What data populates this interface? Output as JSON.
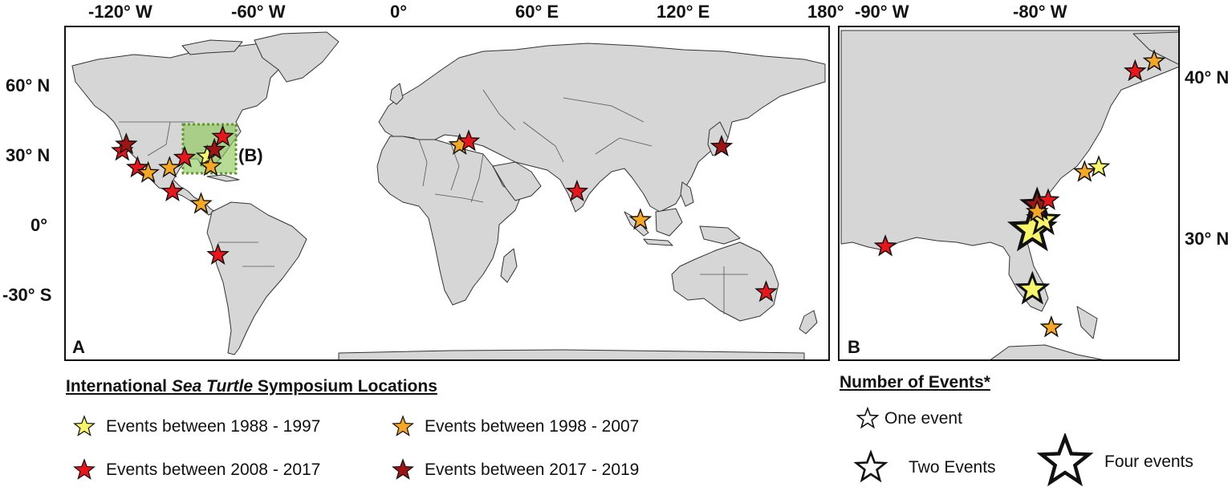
{
  "colors": {
    "land": "#d6d6d6",
    "border": "#333333",
    "ocean": "#ffffff",
    "era_1988_1997": "#f7f56a",
    "era_1998_2007": "#f5a623",
    "era_2008_2017": "#e8151b",
    "era_2017_2019": "#9e1414",
    "box_fill": "#8fca5c"
  },
  "panel_a": {
    "label": "A",
    "box_label": "(B)",
    "lon_ticks": [
      "-120° W",
      "-60° W",
      "0°",
      "60° E",
      "120° E",
      "180°"
    ],
    "lat_ticks": [
      "60° N",
      "30° N",
      "0°",
      "-30° S"
    ]
  },
  "panel_b": {
    "label": "B",
    "lon_ticks": [
      "-90° W",
      "-80° W"
    ],
    "lat_ticks": [
      "40° N",
      "30° N"
    ]
  },
  "legend": {
    "title_part1": "International ",
    "title_italic": "Sea Turtle",
    "title_part2": " Symposium Locations",
    "items": [
      {
        "label": "Events between 1988 - 1997",
        "color_key": "era_1988_1997"
      },
      {
        "label": "Events between 1998 - 2007",
        "color_key": "era_1998_2007"
      },
      {
        "label": "Events between 2008 - 2017",
        "color_key": "era_2008_2017"
      },
      {
        "label": "Events between 2017 - 2019",
        "color_key": "era_2017_2019"
      }
    ]
  },
  "size_legend": {
    "title": "Number of Events*",
    "one": "One event",
    "two": "Two Events",
    "four": "Four events"
  },
  "events_a": [
    {
      "lon": -117.2,
      "lat": 32.7,
      "era": "era_2008_2017"
    },
    {
      "lon": -115.5,
      "lat": 35.5,
      "era": "era_2017_2019"
    },
    {
      "lon": -110.8,
      "lat": 25.5,
      "era": "era_2008_2017"
    },
    {
      "lon": -106.3,
      "lat": 23.2,
      "era": "era_1998_2007"
    },
    {
      "lon": -97.3,
      "lat": 25.4,
      "era": "era_1998_2007"
    },
    {
      "lon": -96.1,
      "lat": 15.2,
      "era": "era_2008_2017"
    },
    {
      "lon": -84.1,
      "lat": 9.9,
      "era": "era_1998_2007"
    },
    {
      "lon": -77.0,
      "lat": -12.0,
      "era": "era_2008_2017"
    },
    {
      "lon": -91.0,
      "lat": 29.8,
      "era": "era_2008_2017"
    },
    {
      "lon": -81.5,
      "lat": 30.3,
      "era": "era_1988_1997"
    },
    {
      "lon": -80.1,
      "lat": 26.1,
      "era": "era_1998_2007"
    },
    {
      "lon": -75.0,
      "lat": 38.8,
      "era": "era_2008_2017"
    },
    {
      "lon": -78.5,
      "lat": 33.2,
      "era": "era_2017_2019"
    },
    {
      "lon": 24.5,
      "lat": 35.2,
      "era": "era_1998_2007"
    },
    {
      "lon": 28.3,
      "lat": 36.8,
      "era": "era_2008_2017"
    },
    {
      "lon": 73.8,
      "lat": 15.2,
      "era": "era_2008_2017"
    },
    {
      "lon": 100.4,
      "lat": 3.0,
      "era": "era_1998_2007"
    },
    {
      "lon": 134.5,
      "lat": 34.5,
      "era": "era_2017_2019"
    },
    {
      "lon": 153.2,
      "lat": -28.0,
      "era": "era_2008_2017"
    }
  ],
  "events_b": [
    {
      "lon": -90.2,
      "lat": 29.6,
      "count": 1,
      "era": "era_2008_2017"
    },
    {
      "lon": -80.9,
      "lat": 30.6,
      "count": 4,
      "era": "era_1988_1997"
    },
    {
      "lon": -80.2,
      "lat": 31.2,
      "count": 2,
      "era": "era_1988_1997"
    },
    {
      "lon": -80.6,
      "lat": 32.1,
      "count": 2,
      "era": "era_2017_2019"
    },
    {
      "lon": -80.6,
      "lat": 31.7,
      "count": 1,
      "era": "era_1998_2007"
    },
    {
      "lon": -79.9,
      "lat": 32.4,
      "count": 1,
      "era": "era_2008_2017"
    },
    {
      "lon": -80.9,
      "lat": 27.0,
      "count": 2,
      "era": "era_1988_1997"
    },
    {
      "lon": -79.7,
      "lat": 24.7,
      "count": 1,
      "era": "era_1998_2007"
    },
    {
      "lon": -77.6,
      "lat": 34.1,
      "count": 1,
      "era": "era_1998_2007"
    },
    {
      "lon": -76.7,
      "lat": 34.4,
      "count": 1,
      "era": "era_1988_1997"
    },
    {
      "lon": -74.4,
      "lat": 40.2,
      "count": 1,
      "era": "era_2008_2017"
    },
    {
      "lon": -73.2,
      "lat": 40.8,
      "count": 1,
      "era": "era_1998_2007"
    }
  ]
}
